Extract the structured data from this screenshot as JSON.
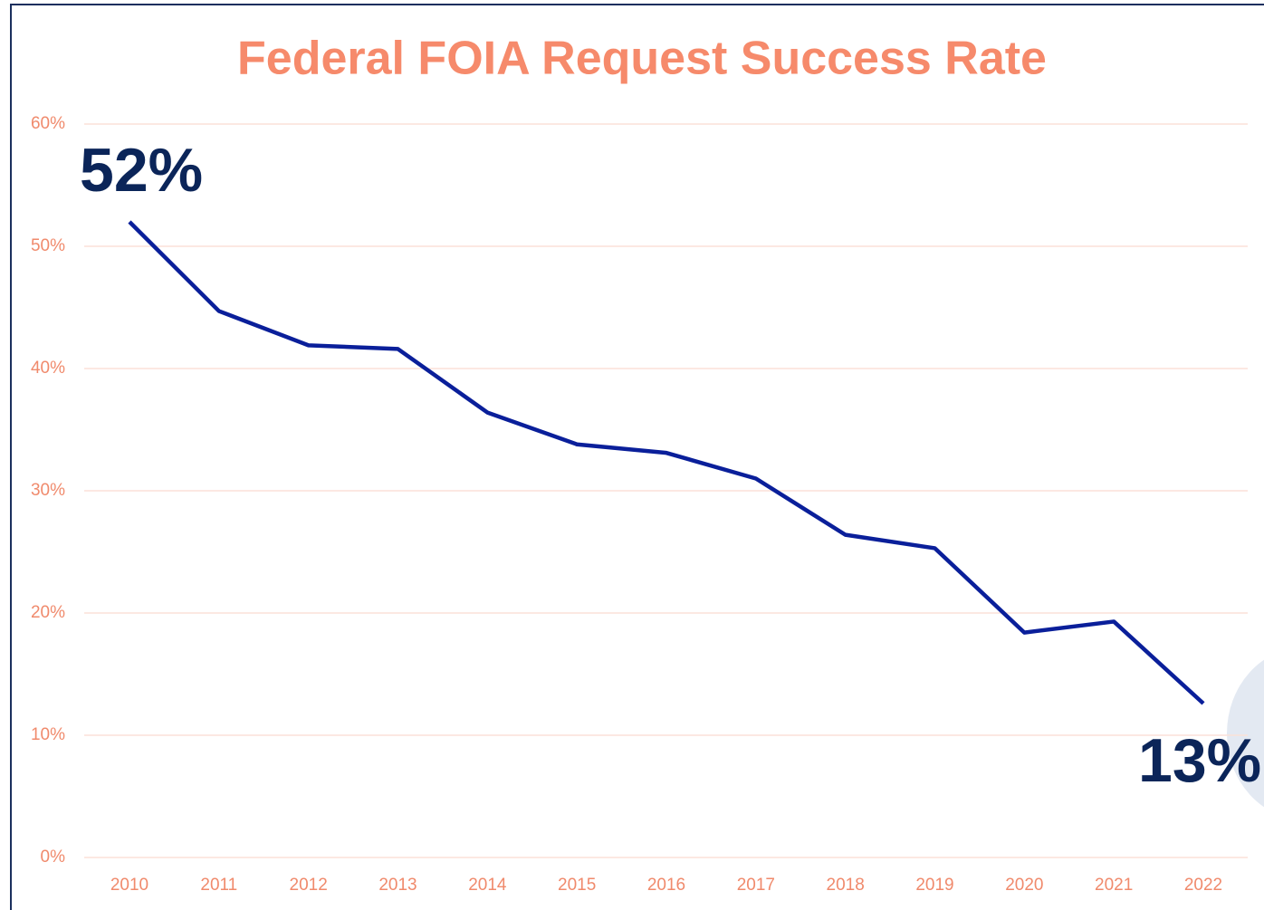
{
  "chart_data": {
    "type": "line",
    "title": "Federal FOIA Request Success Rate",
    "categories": [
      "2010",
      "2011",
      "2012",
      "2013",
      "2014",
      "2015",
      "2016",
      "2017",
      "2018",
      "2019",
      "2020",
      "2021",
      "2022"
    ],
    "series": [
      {
        "color": "#0a1f9a",
        "values": [
          52.0,
          44.7,
          41.9,
          41.6,
          36.4,
          33.8,
          33.1,
          31.0,
          26.4,
          25.3,
          18.4,
          19.3,
          12.6
        ],
        "value_labels": [
          "52%",
          null,
          null,
          null,
          null,
          null,
          null,
          null,
          null,
          null,
          null,
          null,
          "13%"
        ]
      }
    ],
    "ylim": [
      0,
      60
    ],
    "yticks": [
      {
        "value": 0,
        "label": "0%"
      },
      {
        "value": 10,
        "label": "10%"
      },
      {
        "value": 20,
        "label": "20%"
      },
      {
        "value": 30,
        "label": "30%"
      },
      {
        "value": 40,
        "label": "40%"
      },
      {
        "value": 50,
        "label": "50%"
      },
      {
        "value": 60,
        "label": "60%"
      }
    ],
    "grid": true
  }
}
